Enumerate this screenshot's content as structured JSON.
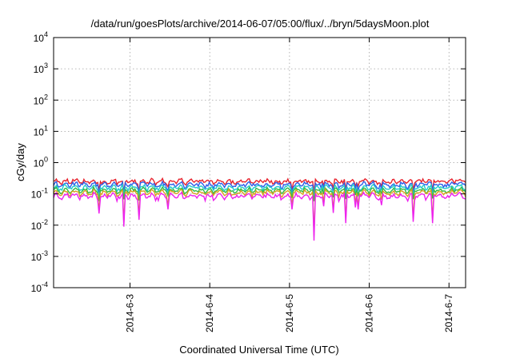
{
  "chart_data": {
    "type": "line",
    "title": "/data/run/goesPlots/archive/2014-06-07/05:00/flux/../bryn/5daysMoon.plot",
    "xlabel": "Coordinated Universal Time (UTC)",
    "ylabel": "cGy/day",
    "y_scale": "log",
    "ylim": [
      0.0001,
      10000
    ],
    "y_ticks": [
      {
        "value": 0.0001,
        "base": "10",
        "exp": "-4"
      },
      {
        "value": 0.001,
        "base": "10",
        "exp": "-3"
      },
      {
        "value": 0.01,
        "base": "10",
        "exp": "-2"
      },
      {
        "value": 0.1,
        "base": "10",
        "exp": "-1"
      },
      {
        "value": 1,
        "base": "10",
        "exp": "0"
      },
      {
        "value": 10,
        "base": "10",
        "exp": "1"
      },
      {
        "value": 100,
        "base": "10",
        "exp": "2"
      },
      {
        "value": 1000,
        "base": "10",
        "exp": "3"
      },
      {
        "value": 10000,
        "base": "10",
        "exp": "4"
      }
    ],
    "xlim": [
      "2014-06-02 01:00",
      "2014-06-07 05:00"
    ],
    "x_ticks": [
      "2014-6-3",
      "2014-6-4",
      "2014-6-5",
      "2014-6-6",
      "2014-6-7"
    ],
    "grid": true,
    "series": [
      {
        "color": "#e8242f",
        "level": 0.25,
        "noise": 0.22
      },
      {
        "color": "#2f5fe8",
        "level": 0.2,
        "noise": 0.24
      },
      {
        "color": "#22cccc",
        "level": 0.16,
        "noise": 0.2
      },
      {
        "color": "#33bb44",
        "level": 0.13,
        "noise": 0.16
      },
      {
        "color": "#d6a020",
        "level": 0.11,
        "noise": 0.18
      },
      {
        "color": "#ee22ee",
        "level": 0.085,
        "noise": 0.26
      }
    ]
  }
}
